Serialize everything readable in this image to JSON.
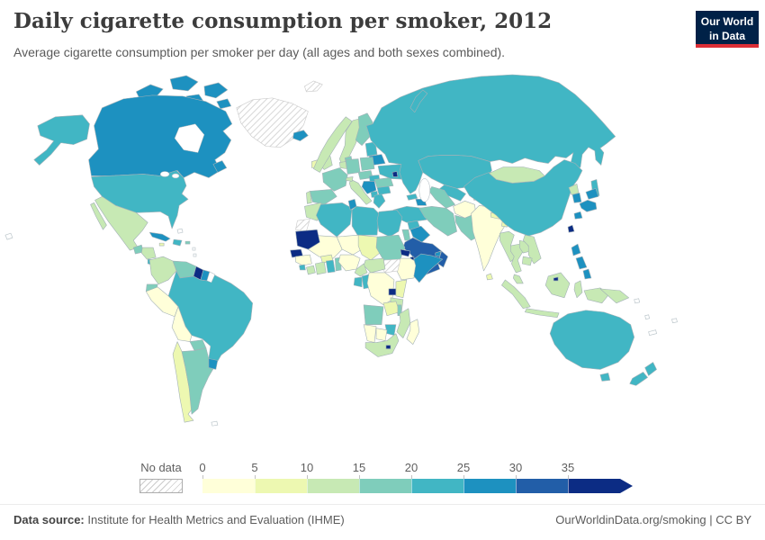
{
  "header": {
    "title": "Daily cigarette consumption per smoker, 2012",
    "subtitle": "Average cigarette consumption per smoker per day (all ages and both sexes combined)."
  },
  "logo": {
    "line1": "Our World",
    "line2": "in Data",
    "bg_color": "#002147",
    "accent_color": "#dc2e36"
  },
  "legend": {
    "no_data_label": "No data",
    "ticks": [
      "0",
      "5",
      "10",
      "15",
      "20",
      "25",
      "30",
      "35"
    ],
    "colors": [
      "#ffffd9",
      "#edf8b1",
      "#c7e9b4",
      "#7fcdbb",
      "#41b6c4",
      "#1d91c0",
      "#225ea8",
      "#0c2c84"
    ]
  },
  "footer": {
    "source_label": "Data source:",
    "source_text": " Institute for Health Metrics and Evaluation (IHME)",
    "right_text": "OurWorldinData.org/smoking | CC BY"
  },
  "chart_data": {
    "type": "choropleth",
    "title": "Daily cigarette consumption per smoker, 2012",
    "year": "2012",
    "unit": "cigarettes per smoker per day",
    "legend_ticks": [
      0,
      5,
      10,
      15,
      20,
      25,
      30,
      35
    ],
    "bucket_ranges": [
      "0-5",
      "5-10",
      "10-15",
      "15-20",
      "20-25",
      "25-30",
      "30-35",
      "35+"
    ],
    "no_data_style": "diagonal-hatch",
    "countries": [
      {
        "id": "greenland",
        "label": "Greenland",
        "bucket": "no-data"
      },
      {
        "id": "svalbard",
        "label": "Svalbard",
        "bucket": "no-data"
      },
      {
        "id": "western-sahara",
        "label": "Western Sahara",
        "bucket": "no-data"
      },
      {
        "id": "south-sudan",
        "label": "South Sudan",
        "bucket": "no-data"
      },
      {
        "id": "canada",
        "label": "Canada",
        "bucket": 5
      },
      {
        "id": "usa",
        "label": "United States",
        "bucket": 4
      },
      {
        "id": "mexico",
        "label": "Mexico",
        "bucket": 2
      },
      {
        "id": "guatemala",
        "label": "Guatemala",
        "bucket": 3
      },
      {
        "id": "honduras-nicaragua",
        "label": "Honduras/Nicaragua",
        "bucket": 2
      },
      {
        "id": "costa-rica",
        "label": "Costa Rica",
        "bucket": 4
      },
      {
        "id": "panama",
        "label": "Panama",
        "bucket": 7
      },
      {
        "id": "cuba",
        "label": "Cuba",
        "bucket": 5
      },
      {
        "id": "hispaniola",
        "label": "Haiti/Dominican Republic",
        "bucket": 4
      },
      {
        "id": "jamaica",
        "label": "Jamaica",
        "bucket": 1
      },
      {
        "id": "puerto-rico",
        "label": "Puerto Rico",
        "bucket": 3
      },
      {
        "id": "colombia",
        "label": "Colombia",
        "bucket": 2
      },
      {
        "id": "venezuela",
        "label": "Venezuela",
        "bucket": 3
      },
      {
        "id": "guyana",
        "label": "Guyana",
        "bucket": 7
      },
      {
        "id": "suriname",
        "label": "Suriname",
        "bucket": 5
      },
      {
        "id": "ecuador",
        "label": "Ecuador",
        "bucket": 3
      },
      {
        "id": "peru",
        "label": "Peru",
        "bucket": 0
      },
      {
        "id": "brazil",
        "label": "Brazil",
        "bucket": 4
      },
      {
        "id": "bolivia",
        "label": "Bolivia",
        "bucket": 0
      },
      {
        "id": "paraguay",
        "label": "Paraguay",
        "bucket": 3
      },
      {
        "id": "chile",
        "label": "Chile",
        "bucket": 1
      },
      {
        "id": "argentina",
        "label": "Argentina",
        "bucket": 3
      },
      {
        "id": "uruguay",
        "label": "Uruguay",
        "bucket": 5
      },
      {
        "id": "iceland",
        "label": "Iceland",
        "bucket": 5
      },
      {
        "id": "ireland",
        "label": "Ireland",
        "bucket": 1
      },
      {
        "id": "uk",
        "label": "United Kingdom",
        "bucket": 2
      },
      {
        "id": "norway",
        "label": "Norway",
        "bucket": 2
      },
      {
        "id": "sweden",
        "label": "Sweden",
        "bucket": 2
      },
      {
        "id": "finland",
        "label": "Finland",
        "bucket": 3
      },
      {
        "id": "denmark",
        "label": "Denmark",
        "bucket": 3
      },
      {
        "id": "baltics",
        "label": "Baltic states",
        "bucket": 4
      },
      {
        "id": "belarus",
        "label": "Belarus",
        "bucket": 5
      },
      {
        "id": "poland",
        "label": "Poland",
        "bucket": 3
      },
      {
        "id": "germany",
        "label": "Germany",
        "bucket": 3
      },
      {
        "id": "benelux",
        "label": "Netherlands/Belgium",
        "bucket": 2
      },
      {
        "id": "france",
        "label": "France",
        "bucket": 3
      },
      {
        "id": "spain",
        "label": "Spain",
        "bucket": 3
      },
      {
        "id": "portugal",
        "label": "Portugal",
        "bucket": 2
      },
      {
        "id": "italy",
        "label": "Italy",
        "bucket": 2
      },
      {
        "id": "switzerland",
        "label": "Switzerland",
        "bucket": 2
      },
      {
        "id": "austria-czechia",
        "label": "Austria/Czechia",
        "bucket": 3
      },
      {
        "id": "hungary",
        "label": "Hungary",
        "bucket": 4
      },
      {
        "id": "balkans",
        "label": "Serbia/Bosnia/Croatia",
        "bucket": 5
      },
      {
        "id": "albania-macedonia",
        "label": "Albania/North Macedonia",
        "bucket": 4
      },
      {
        "id": "greece",
        "label": "Greece",
        "bucket": 4
      },
      {
        "id": "bulgaria",
        "label": "Bulgaria",
        "bucket": 4
      },
      {
        "id": "romania",
        "label": "Romania",
        "bucket": 3
      },
      {
        "id": "ukraine",
        "label": "Ukraine",
        "bucket": 4
      },
      {
        "id": "moldova",
        "label": "Moldova",
        "bucket": 7
      },
      {
        "id": "russia",
        "label": "Russia",
        "bucket": 4
      },
      {
        "id": "kazakhstan",
        "label": "Kazakhstan",
        "bucket": 4
      },
      {
        "id": "uzbekistan",
        "label": "Uzbekistan",
        "bucket": 4
      },
      {
        "id": "turkmenistan",
        "label": "Turkmenistan",
        "bucket": 3
      },
      {
        "id": "kyrgyzstan",
        "label": "Kyrgyzstan",
        "bucket": 3
      },
      {
        "id": "tajikistan",
        "label": "Tajikistan",
        "bucket": 1
      },
      {
        "id": "georgia",
        "label": "Georgia",
        "bucket": 4
      },
      {
        "id": "azerbaijan-armenia",
        "label": "Azerbaijan/Armenia",
        "bucket": 5
      },
      {
        "id": "turkey",
        "label": "Turkey",
        "bucket": 4
      },
      {
        "id": "syria",
        "label": "Syria",
        "bucket": 4
      },
      {
        "id": "iraq",
        "label": "Iraq",
        "bucket": 5
      },
      {
        "id": "jordan-israel",
        "label": "Jordan/Israel",
        "bucket": 3
      },
      {
        "id": "saudi-arabia",
        "label": "Saudi Arabia",
        "bucket": 6
      },
      {
        "id": "yemen",
        "label": "Yemen",
        "bucket": 6
      },
      {
        "id": "oman",
        "label": "Oman",
        "bucket": 6
      },
      {
        "id": "uae",
        "label": "United Arab Emirates",
        "bucket": 5
      },
      {
        "id": "iran",
        "label": "Iran",
        "bucket": 3
      },
      {
        "id": "afghanistan",
        "label": "Afghanistan",
        "bucket": 0
      },
      {
        "id": "pakistan",
        "label": "Pakistan",
        "bucket": 3
      },
      {
        "id": "india",
        "label": "India",
        "bucket": 0
      },
      {
        "id": "nepal",
        "label": "Nepal",
        "bucket": 1
      },
      {
        "id": "bangladesh",
        "label": "Bangladesh",
        "bucket": 1
      },
      {
        "id": "sri-lanka",
        "label": "Sri Lanka",
        "bucket": 1
      },
      {
        "id": "china",
        "label": "China",
        "bucket": 4
      },
      {
        "id": "mongolia",
        "label": "Mongolia",
        "bucket": 2
      },
      {
        "id": "taiwan",
        "label": "Taiwan",
        "bucket": 7
      },
      {
        "id": "north-korea",
        "label": "North Korea",
        "bucket": 2
      },
      {
        "id": "south-korea",
        "label": "South Korea",
        "bucket": 5
      },
      {
        "id": "japan",
        "label": "Japan",
        "bucket": 5
      },
      {
        "id": "myanmar",
        "label": "Myanmar",
        "bucket": 2
      },
      {
        "id": "thailand",
        "label": "Thailand",
        "bucket": 2
      },
      {
        "id": "laos",
        "label": "Laos",
        "bucket": 2
      },
      {
        "id": "vietnam",
        "label": "Vietnam",
        "bucket": 2
      },
      {
        "id": "cambodia",
        "label": "Cambodia",
        "bucket": 2
      },
      {
        "id": "malaysia",
        "label": "Malaysia",
        "bucket": 2
      },
      {
        "id": "indonesia",
        "label": "Indonesia",
        "bucket": 2
      },
      {
        "id": "brunei",
        "label": "Brunei",
        "bucket": 7
      },
      {
        "id": "philippines",
        "label": "Philippines",
        "bucket": 5
      },
      {
        "id": "papua-new-guinea",
        "label": "Papua New Guinea",
        "bucket": 2
      },
      {
        "id": "australia",
        "label": "Australia",
        "bucket": 4
      },
      {
        "id": "new-zealand",
        "label": "New Zealand",
        "bucket": 4
      },
      {
        "id": "morocco",
        "label": "Morocco",
        "bucket": 2
      },
      {
        "id": "algeria",
        "label": "Algeria",
        "bucket": 4
      },
      {
        "id": "tunisia",
        "label": "Tunisia",
        "bucket": 5
      },
      {
        "id": "libya",
        "label": "Libya",
        "bucket": 4
      },
      {
        "id": "egypt",
        "label": "Egypt",
        "bucket": 4
      },
      {
        "id": "mauritania",
        "label": "Mauritania",
        "bucket": 7
      },
      {
        "id": "senegal",
        "label": "Senegal",
        "bucket": 7
      },
      {
        "id": "guinea",
        "label": "Guinea",
        "bucket": 0
      },
      {
        "id": "sierra-leone",
        "label": "Sierra Leone",
        "bucket": 4
      },
      {
        "id": "liberia",
        "label": "Liberia",
        "bucket": 2
      },
      {
        "id": "mali",
        "label": "Mali",
        "bucket": 0
      },
      {
        "id": "burkina-faso",
        "label": "Burkina Faso",
        "bucket": 1
      },
      {
        "id": "ivory-coast",
        "label": "Cote d'Ivoire",
        "bucket": 2
      },
      {
        "id": "ghana",
        "label": "Ghana",
        "bucket": 4
      },
      {
        "id": "togo-benin",
        "label": "Togo/Benin",
        "bucket": 3
      },
      {
        "id": "niger",
        "label": "Niger",
        "bucket": 0
      },
      {
        "id": "nigeria",
        "label": "Nigeria",
        "bucket": 0
      },
      {
        "id": "chad",
        "label": "Chad",
        "bucket": 1
      },
      {
        "id": "cameroon",
        "label": "Cameroon",
        "bucket": 2
      },
      {
        "id": "car",
        "label": "Central African Republic",
        "bucket": 2
      },
      {
        "id": "sudan",
        "label": "Sudan",
        "bucket": 3
      },
      {
        "id": "eritrea",
        "label": "Eritrea",
        "bucket": 7
      },
      {
        "id": "djibouti",
        "label": "Djibouti",
        "bucket": 7
      },
      {
        "id": "ethiopia",
        "label": "Ethiopia",
        "bucket": 0
      },
      {
        "id": "somalia",
        "label": "Somalia",
        "bucket": 5
      },
      {
        "id": "uganda",
        "label": "Uganda",
        "bucket": 7
      },
      {
        "id": "kenya",
        "label": "Kenya",
        "bucket": 1
      },
      {
        "id": "drc",
        "label": "Democratic Republic of Congo",
        "bucket": 0
      },
      {
        "id": "congo",
        "label": "Congo",
        "bucket": 4
      },
      {
        "id": "gabon",
        "label": "Gabon",
        "bucket": 4
      },
      {
        "id": "tanzania",
        "label": "Tanzania",
        "bucket": 2
      },
      {
        "id": "angola",
        "label": "Angola",
        "bucket": 3
      },
      {
        "id": "zambia",
        "label": "Zambia",
        "bucket": 1
      },
      {
        "id": "malawi",
        "label": "Malawi",
        "bucket": 3
      },
      {
        "id": "mozambique",
        "label": "Mozambique",
        "bucket": 2
      },
      {
        "id": "zimbabwe",
        "label": "Zimbabwe",
        "bucket": 4
      },
      {
        "id": "botswana",
        "label": "Botswana",
        "bucket": 0
      },
      {
        "id": "namibia",
        "label": "Namibia",
        "bucket": 0
      },
      {
        "id": "south-africa",
        "label": "South Africa",
        "bucket": 2
      },
      {
        "id": "lesotho",
        "label": "Lesotho",
        "bucket": 7
      },
      {
        "id": "madagascar",
        "label": "Madagascar",
        "bucket": 0
      }
    ]
  }
}
